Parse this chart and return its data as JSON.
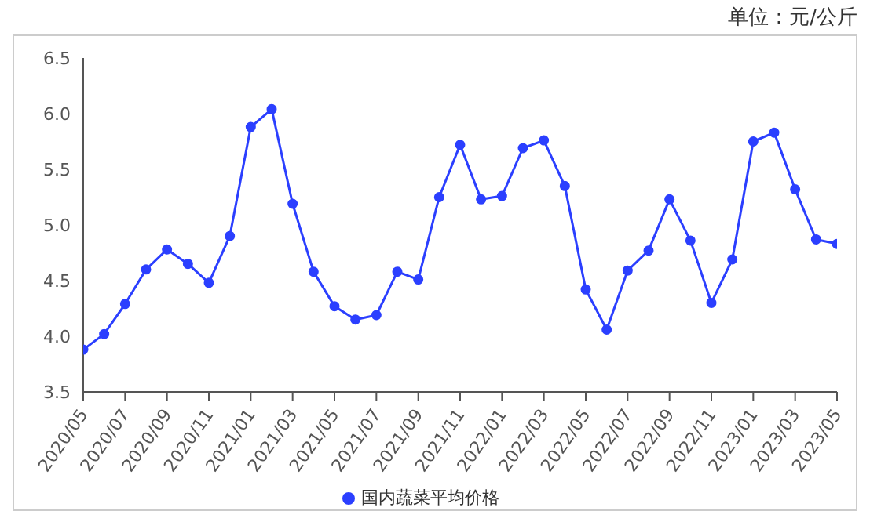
{
  "chart_data": {
    "type": "line",
    "annotations": [
      "单位：元/公斤"
    ],
    "categories": [
      "2020/05",
      null,
      "2020/07",
      null,
      "2020/09",
      null,
      "2020/11",
      null,
      "2021/01",
      null,
      "2021/03",
      null,
      "2021/05",
      null,
      "2021/07",
      null,
      "2021/09",
      null,
      "2021/11",
      null,
      "2022/01",
      null,
      "2022/03",
      null,
      "2022/05",
      null,
      "2022/07",
      null,
      "2022/09",
      null,
      "2022/11",
      null,
      "2023/01",
      null,
      "2023/03",
      null,
      "2023/05"
    ],
    "series": [
      {
        "name": "国内蔬菜平均价格",
        "color": "#2b3fff",
        "values": [
          3.88,
          4.02,
          4.29,
          4.6,
          4.78,
          4.65,
          4.48,
          4.9,
          5.88,
          6.04,
          5.19,
          4.58,
          4.27,
          4.15,
          4.19,
          4.58,
          4.51,
          5.25,
          5.72,
          5.23,
          5.26,
          5.69,
          5.76,
          5.35,
          4.42,
          4.06,
          4.59,
          4.77,
          5.23,
          4.86,
          4.3,
          4.69,
          5.75,
          5.83,
          5.32,
          4.87,
          4.83
        ]
      }
    ],
    "ylim": [
      3.5,
      6.5
    ],
    "yticks": [
      {
        "value": 3.5,
        "label": "3.5"
      },
      {
        "value": 4,
        "label": "4.0"
      },
      {
        "value": 4.5,
        "label": "4.5"
      },
      {
        "value": 5,
        "label": "5.0"
      },
      {
        "value": 5.5,
        "label": "5.5"
      },
      {
        "value": 6,
        "label": "6.0"
      },
      {
        "value": 6.5,
        "label": "6.5"
      }
    ],
    "grid": false,
    "legend": "bottom",
    "marker": "circle",
    "line_style": "solid"
  }
}
